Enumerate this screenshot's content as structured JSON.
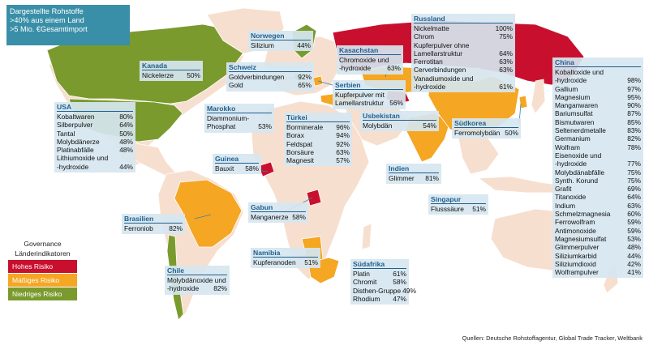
{
  "header": {
    "line1": "Dargestellte Rohstoffe",
    "line2": ">40% aus einem Land",
    "line3": ">5 Mio. €Gesamtimport"
  },
  "legend": {
    "title1": "Governance",
    "title2": "Länderindikatoren",
    "items": [
      {
        "label": "Hohes Risiko",
        "color": "#c8102e"
      },
      {
        "label": "Mäßiges Risiko",
        "color": "#f5a623"
      },
      {
        "label": "Niedriges Risiko",
        "color": "#7a9a2e"
      }
    ]
  },
  "colors": {
    "neutral_land": "#f7dfcf",
    "border": "#ffffff",
    "box_bg": "#d6e6f0",
    "title": "#1f5f8f"
  },
  "source": "Quellen: Deutsche Rohstoffagentur, Global Trade Tracker, Weltbank",
  "countries": {
    "kanada": {
      "name": "Kanada",
      "rows": [
        [
          "Nickelerze",
          "50%"
        ]
      ]
    },
    "usa": {
      "name": "USA",
      "rows": [
        [
          "Kobaltwaren",
          "80%"
        ],
        [
          "Silberpulver",
          "64%"
        ],
        [
          "Tantal",
          "50%"
        ],
        [
          "Molybdänerze",
          "48%"
        ],
        [
          "Platinabfälle",
          "48%"
        ],
        [
          "Lithiumoxide und",
          ""
        ],
        [
          "-hydroxide",
          "44%"
        ]
      ]
    },
    "norwegen": {
      "name": "Norwegen",
      "rows": [
        [
          "Silizium",
          "44%"
        ]
      ]
    },
    "schweiz": {
      "name": "Schweiz",
      "rows": [
        [
          "Goldverbindungen",
          "92%"
        ],
        [
          "Gold",
          "65%"
        ]
      ]
    },
    "serbien": {
      "name": "Serbien",
      "rows": [
        [
          "Kupferpulver mit",
          ""
        ],
        [
          "Lamellarstruktur",
          "56%"
        ]
      ]
    },
    "kasachstan": {
      "name": "Kasachstan",
      "rows": [
        [
          "Chromoxide und",
          ""
        ],
        [
          "-hydroxide",
          "63%"
        ]
      ]
    },
    "russland": {
      "name": "Russland",
      "rows": [
        [
          "Nickelmatte",
          "100%"
        ],
        [
          "Chrom",
          "75%"
        ],
        [
          "Kupferpulver ohne",
          ""
        ],
        [
          "Lamellarstruktur",
          "64%"
        ],
        [
          "Ferrotitan",
          "63%"
        ],
        [
          "Cerverbindungen",
          "63%"
        ],
        [
          "Vanadiumoxide und",
          ""
        ],
        [
          "-hydroxide",
          "61%"
        ]
      ]
    },
    "marokko": {
      "name": "Marokko",
      "rows": [
        [
          "Diammonium-",
          ""
        ],
        [
          "Phosphat",
          "53%"
        ]
      ]
    },
    "tuerkei": {
      "name": "Türkei",
      "rows": [
        [
          "Borminerale",
          "96%"
        ],
        [
          "Borax",
          "94%"
        ],
        [
          "Feldspat",
          "92%"
        ],
        [
          "Borsäure",
          "63%"
        ],
        [
          "Magnesit",
          "57%"
        ]
      ]
    },
    "usbekistan": {
      "name": "Usbekistan",
      "rows": [
        [
          "Molybdän",
          "54%"
        ]
      ]
    },
    "suedkorea": {
      "name": "Südkorea",
      "rows": [
        [
          "Ferromolybdän",
          "50%"
        ]
      ]
    },
    "china": {
      "name": "China",
      "rows": [
        [
          "Kobaltoxide und",
          ""
        ],
        [
          "-hydroxide",
          "98%"
        ],
        [
          "Gallium",
          "97%"
        ],
        [
          "Magnesium",
          "95%"
        ],
        [
          "Manganwaren",
          "90%"
        ],
        [
          "Bariumsulfat",
          "87%"
        ],
        [
          "Bismutwaren",
          "85%"
        ],
        [
          "Seltenerdmetalle",
          "83%"
        ],
        [
          "Germanium",
          "82%"
        ],
        [
          "Wolfram",
          "78%"
        ],
        [
          "Eisenoxide und",
          ""
        ],
        [
          "-hydroxide",
          "77%"
        ],
        [
          "Molybdänabfälle",
          "75%"
        ],
        [
          "Synth. Korund",
          "75%"
        ],
        [
          "Grafit",
          "69%"
        ],
        [
          "Titanoxide",
          "64%"
        ],
        [
          "Indium",
          "63%"
        ],
        [
          "Schmelzmagnesia",
          "60%"
        ],
        [
          "Ferrowolfram",
          "59%"
        ],
        [
          "Antimonoxide",
          "59%"
        ],
        [
          "Magnesiumsulfat",
          "53%"
        ],
        [
          "Glimmerpulver",
          "48%"
        ],
        [
          "Siliziumkarbid",
          "44%"
        ],
        [
          "Siliziumdioxid",
          "42%"
        ],
        [
          "Wolframpulver",
          "41%"
        ]
      ]
    },
    "guinea": {
      "name": "Guinea",
      "rows": [
        [
          "Bauxit",
          "58%"
        ]
      ]
    },
    "indien": {
      "name": "Indien",
      "rows": [
        [
          "Glimmer",
          "81%"
        ]
      ]
    },
    "gabun": {
      "name": "Gabun",
      "rows": [
        [
          "Manganerze",
          "58%"
        ]
      ]
    },
    "singapur": {
      "name": "Singapur",
      "rows": [
        [
          "Flusssäure",
          "51%"
        ]
      ]
    },
    "brasilien": {
      "name": "Brasilien",
      "rows": [
        [
          "Ferroniob",
          "82%"
        ]
      ]
    },
    "namibia": {
      "name": "Namibia",
      "rows": [
        [
          "Kupferanoden",
          "51%"
        ]
      ]
    },
    "chile": {
      "name": "Chile",
      "rows": [
        [
          "Molybdänoxide und",
          ""
        ],
        [
          "-hydroxide",
          "82%"
        ]
      ]
    },
    "suedafrika": {
      "name": "Südafrika",
      "rows": [
        [
          "Platin",
          "61%"
        ],
        [
          "Chromit",
          "58%"
        ],
        [
          "Disthen-Gruppe",
          "49%"
        ],
        [
          "Rhodium",
          "47%"
        ]
      ]
    }
  }
}
